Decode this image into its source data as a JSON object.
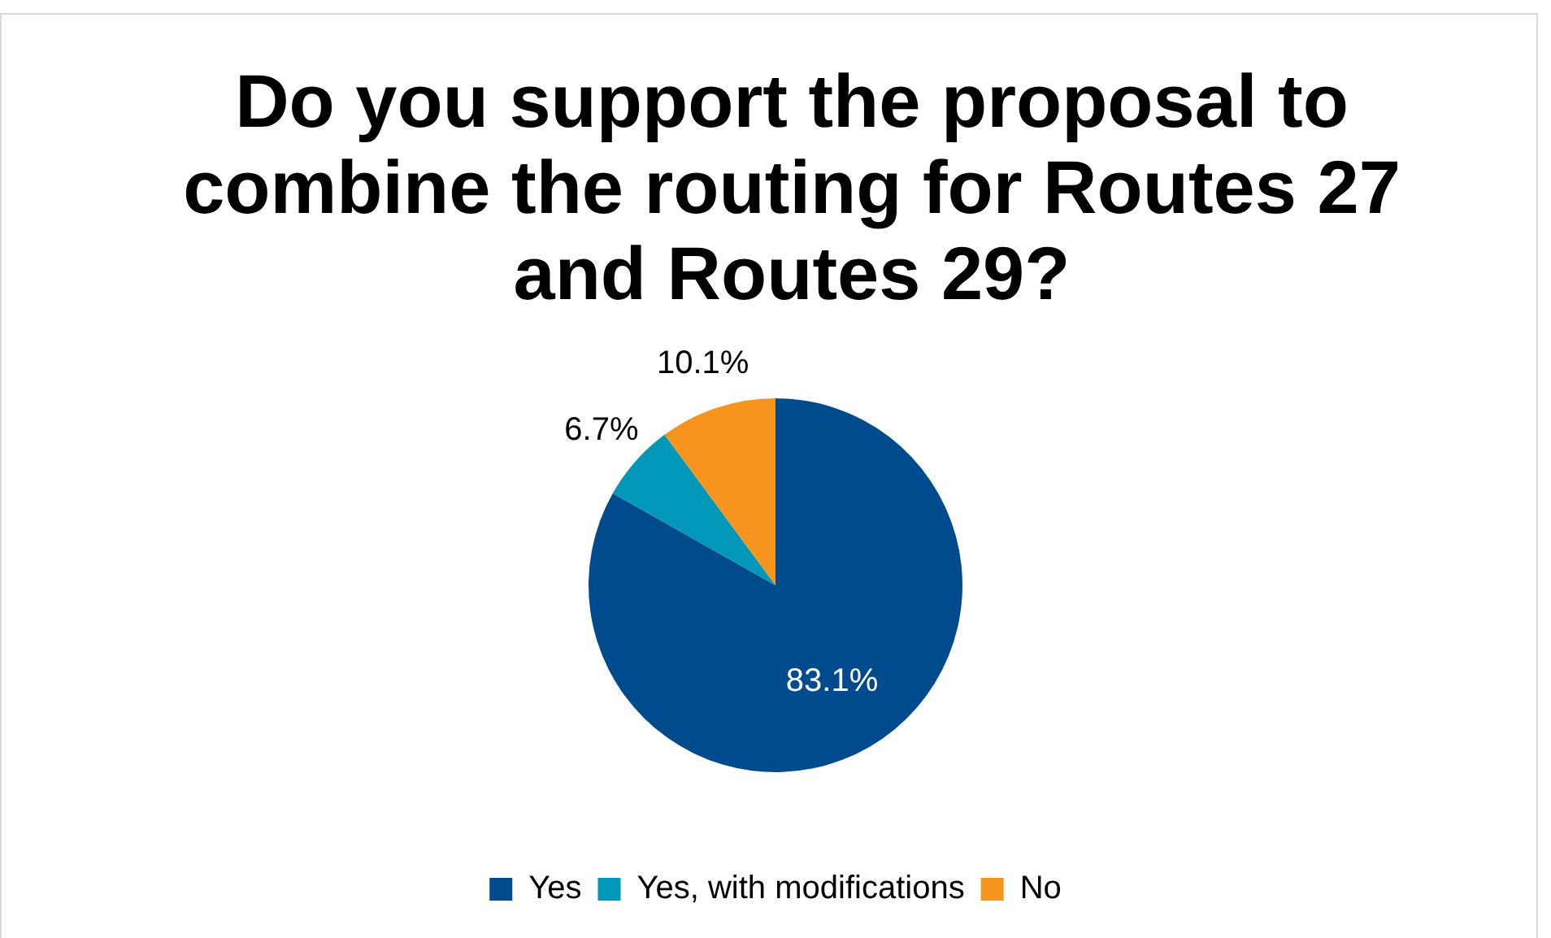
{
  "chart_data": {
    "type": "pie",
    "title": "Do you support the proposal to combine the routing for Routes 27 and Routes 29?",
    "categories": [
      "Yes",
      "Yes, with modifications",
      "No"
    ],
    "values": [
      83.1,
      6.7,
      10.1
    ],
    "colors": [
      "#004b8d",
      "#0097b9",
      "#f7941d"
    ],
    "value_labels": [
      "83.1%",
      "6.7%",
      "10.1%"
    ],
    "legend": "bottom"
  }
}
